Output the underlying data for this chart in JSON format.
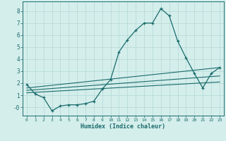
{
  "xlabel": "Humidex (Indice chaleur)",
  "bg_color": "#d4eeec",
  "line_color": "#1a6b6b",
  "grid_color": "#b8dbd8",
  "xlim": [
    -0.5,
    23.5
  ],
  "ylim": [
    -0.7,
    8.8
  ],
  "line1_x": [
    0,
    1,
    2,
    3,
    4,
    5,
    6,
    7,
    8,
    9,
    10,
    11,
    12,
    13,
    14,
    15,
    16,
    17,
    18,
    19,
    20,
    21,
    22,
    23
  ],
  "line1_y": [
    1.9,
    1.1,
    0.8,
    -0.3,
    0.1,
    0.2,
    0.2,
    0.3,
    0.5,
    1.5,
    2.3,
    4.6,
    5.6,
    6.4,
    7.0,
    7.0,
    8.2,
    7.6,
    5.5,
    4.1,
    2.8,
    1.6,
    2.8,
    3.3
  ],
  "line2_x": [
    0,
    23
  ],
  "line2_y": [
    1.6,
    3.3
  ],
  "line3_x": [
    0,
    23
  ],
  "line3_y": [
    1.4,
    2.6
  ],
  "line4_x": [
    0,
    23
  ],
  "line4_y": [
    1.2,
    2.1
  ]
}
